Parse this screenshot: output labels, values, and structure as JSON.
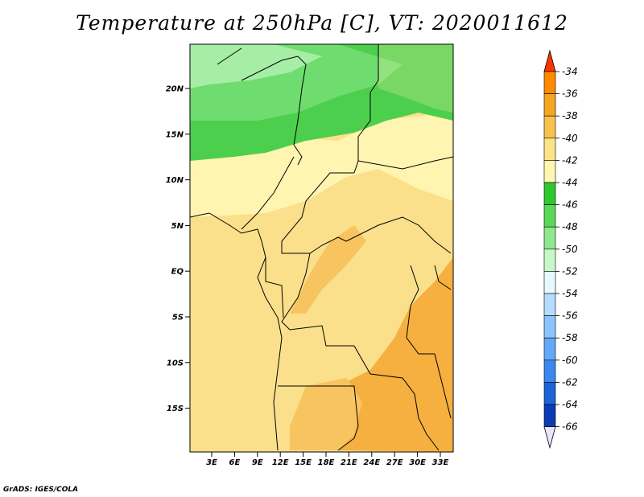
{
  "title": "Temperature at 250hPa [C], VT: 2020011612",
  "credit": "GrADS: IGES/COLA",
  "lat_labels": [
    "20N",
    "15N",
    "10N",
    "5N",
    "EQ",
    "5S",
    "10S",
    "15S"
  ],
  "lon_labels": [
    "3E",
    "6E",
    "9E",
    "12E",
    "15E",
    "18E",
    "21E",
    "24E",
    "27E",
    "30E",
    "33E"
  ],
  "colorbar": {
    "labels": [
      "-34",
      "-36",
      "-38",
      "-40",
      "-42",
      "-44",
      "-46",
      "-48",
      "-50",
      "-52",
      "-54",
      "-56",
      "-58",
      "-60",
      "-62",
      "-64",
      "-66"
    ],
    "colors": [
      "#ff6600",
      "#ff8c00",
      "#f5a623",
      "#f8c24f",
      "#fbe38a",
      "#fff7b0",
      "#2ec82e",
      "#5ad85a",
      "#8ee88e",
      "#c8f8c8",
      "#e8f8ff",
      "#b4dcff",
      "#8cc4ff",
      "#64a8f8",
      "#3c88f0",
      "#1e64d8",
      "#0a3cb4",
      "#051478",
      "#e0e0ff"
    ],
    "top_color": "#ff3300",
    "bottom_color": "#e6e6ff"
  },
  "map_colors": {
    "green_dark": "#4ccf4c",
    "green_mid": "#6fdc6f",
    "green_light": "#a6eea6",
    "yellow_pale": "#fff5b0",
    "yellow": "#fbe08c",
    "orange_light": "#f8c460",
    "orange": "#f5b040",
    "border": "#000000"
  }
}
